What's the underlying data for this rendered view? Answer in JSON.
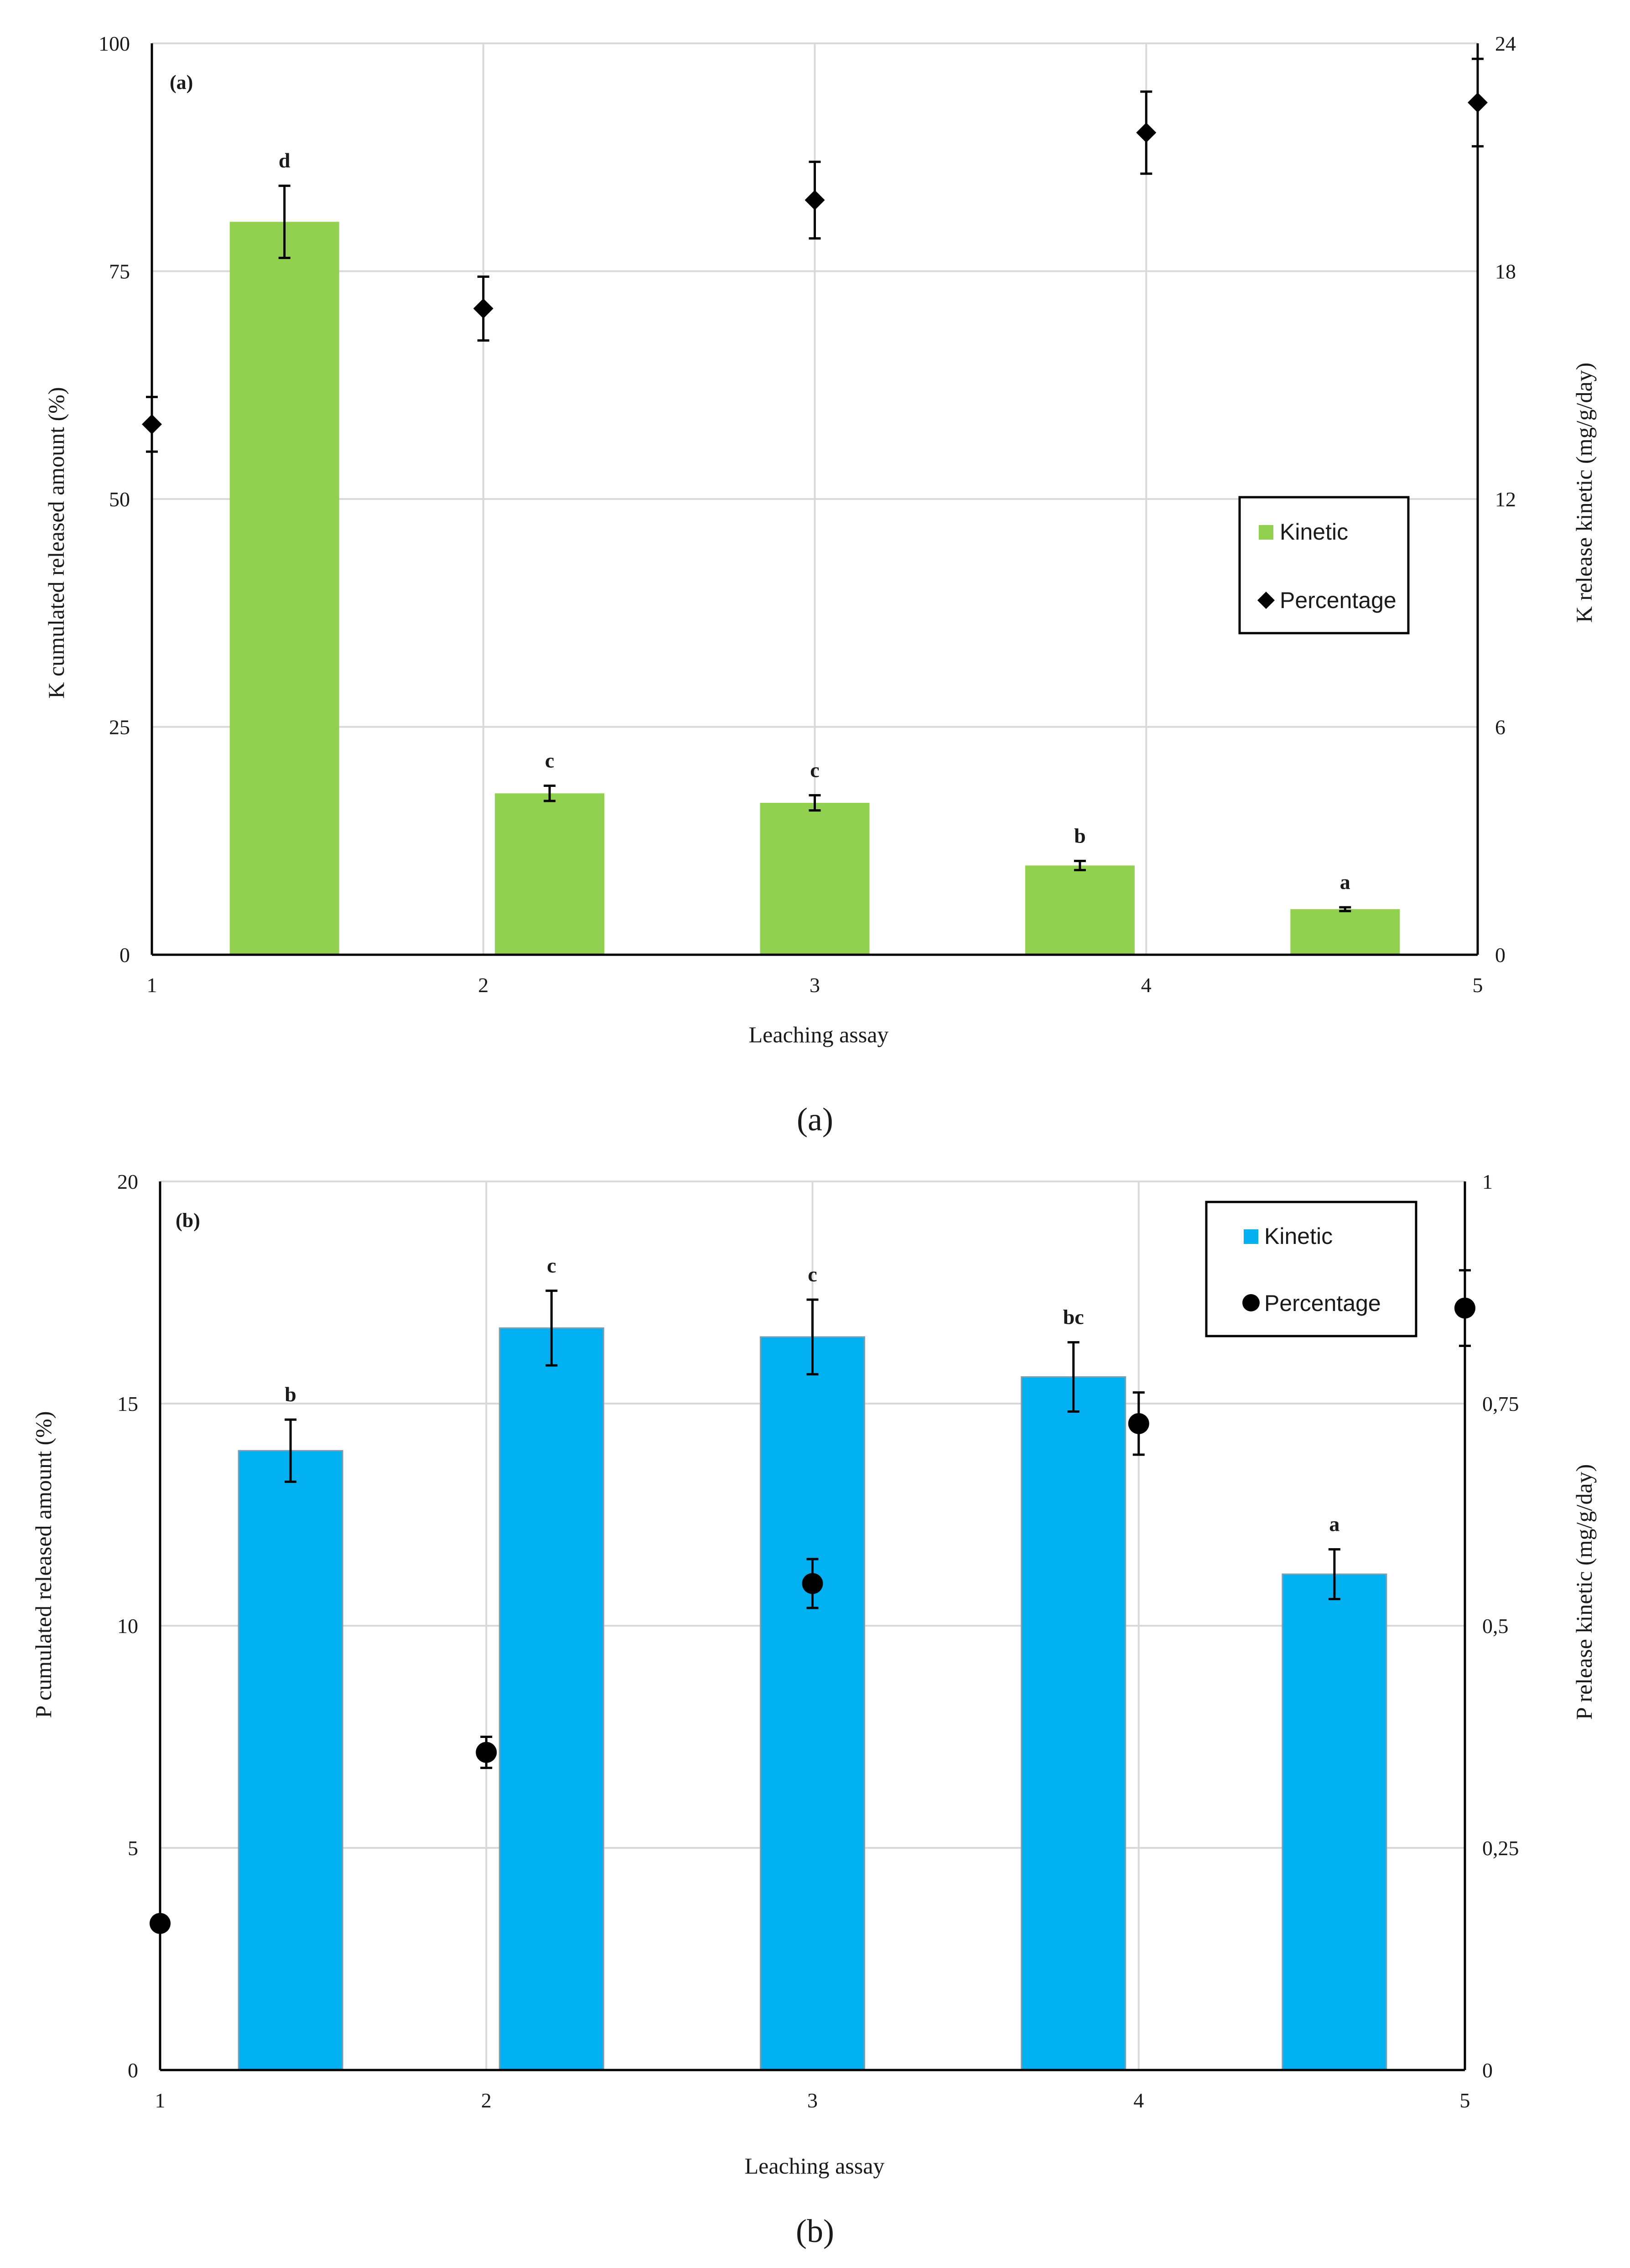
{
  "chart_data": [
    {
      "type": "bar+scatter",
      "panel_label": "(a)",
      "caption": "(a)",
      "xlabel": "Leaching assay",
      "ylabel_left": "K cumulated released amount (%)",
      "ylabel_right": "K release kinetic (mg/g/day)",
      "x_ticks": [
        "1",
        "2",
        "3",
        "4",
        "5"
      ],
      "xlim": [
        1,
        5
      ],
      "ylim_left": [
        0,
        100
      ],
      "ylim_right": [
        0,
        24
      ],
      "y_ticks_left": [
        "0",
        "25",
        "50",
        "75",
        "100"
      ],
      "y_ticks_right": [
        "0",
        "6",
        "12",
        "18",
        "24"
      ],
      "legend": {
        "kinetic": "Kinetic",
        "percentage": "Percentage",
        "position": "center-right"
      },
      "bar_color": "#92d050",
      "series": [
        {
          "name": "Kinetic",
          "axis": "right",
          "x": [
            1.4,
            2.2,
            3.0,
            3.8,
            4.6
          ],
          "values": [
            19.3,
            4.25,
            4.0,
            2.35,
            1.2
          ],
          "errors": [
            0.95,
            0.2,
            0.2,
            0.12,
            0.05
          ],
          "letters": [
            "d",
            "c",
            "c",
            "b",
            "a"
          ]
        },
        {
          "name": "Percentage",
          "axis": "left",
          "marker": "diamond",
          "x": [
            1,
            2,
            3,
            4,
            5
          ],
          "values": [
            58.2,
            70.9,
            82.8,
            90.2,
            93.5
          ],
          "errors": [
            3.0,
            3.5,
            4.2,
            4.5,
            4.8
          ]
        }
      ]
    },
    {
      "type": "bar+scatter",
      "panel_label": "(b)",
      "caption": "(b)",
      "xlabel": "Leaching assay",
      "ylabel_left": "P cumulated released amount (%)",
      "ylabel_right": "P release kinetic (mg/g/day)",
      "x_ticks": [
        "1",
        "2",
        "3",
        "4",
        "5"
      ],
      "xlim": [
        1,
        5
      ],
      "ylim_left": [
        0,
        20
      ],
      "ylim_right": [
        0,
        1
      ],
      "y_ticks_left": [
        "0",
        "5",
        "10",
        "15",
        "20"
      ],
      "y_ticks_right": [
        "0",
        "0,25",
        "0,5",
        "0,75",
        "1"
      ],
      "legend": {
        "kinetic": "Kinetic",
        "percentage": "Percentage",
        "position": "top-right"
      },
      "bar_color": "#00b0f0",
      "series": [
        {
          "name": "Kinetic",
          "axis": "right",
          "x": [
            1.4,
            2.2,
            3.0,
            3.8,
            4.6
          ],
          "values": [
            0.697,
            0.835,
            0.825,
            0.78,
            0.558
          ],
          "errors": [
            0.035,
            0.042,
            0.042,
            0.039,
            0.028
          ],
          "letters": [
            "b",
            "c",
            "c",
            "bc",
            "a"
          ]
        },
        {
          "name": "Percentage",
          "axis": "left",
          "marker": "circle",
          "x": [
            1,
            2,
            3,
            4,
            5
          ],
          "values": [
            3.3,
            7.15,
            10.95,
            14.55,
            17.15
          ],
          "errors": [
            0.15,
            0.35,
            0.55,
            0.7,
            0.85
          ]
        }
      ]
    }
  ]
}
